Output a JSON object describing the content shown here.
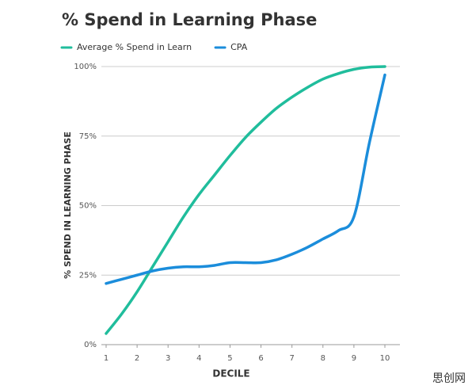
{
  "chart_data": {
    "type": "line",
    "title": "% Spend in Learning Phase",
    "x_label": "DECILE",
    "y_label": "% SPEND IN LEARNING PHASE",
    "x": [
      1,
      1.5,
      2,
      2.5,
      3,
      3.5,
      4,
      4.5,
      5,
      5.5,
      6,
      6.5,
      7,
      7.5,
      8,
      8.5,
      9,
      9.5,
      10
    ],
    "series": [
      {
        "name": "Average % Spend in Learn",
        "color": "#20bd9c",
        "values": [
          4,
          11,
          19,
          28,
          37,
          46,
          54,
          61,
          68,
          74.5,
          80,
          85,
          89,
          92.5,
          95.5,
          97.5,
          99,
          99.8,
          100
        ]
      },
      {
        "name": "CPA",
        "color": "#1b8ddb",
        "values": [
          22,
          23.5,
          25,
          26.5,
          27.5,
          28,
          28,
          28.5,
          29.5,
          29.5,
          29.5,
          30.5,
          32.5,
          35,
          38,
          41,
          46,
          72.6,
          97
        ]
      }
    ],
    "xlim": [
      1,
      10
    ],
    "ylim": [
      0,
      100
    ],
    "xticks": [
      1,
      2,
      3,
      4,
      5,
      6,
      7,
      8,
      9,
      10
    ],
    "yticks": [
      {
        "value": 0,
        "label": "0%"
      },
      {
        "value": 25,
        "label": "25%"
      },
      {
        "value": 50,
        "label": "50%"
      },
      {
        "value": 75,
        "label": "75%"
      },
      {
        "value": 100,
        "label": "100%"
      }
    ],
    "grid": true,
    "watermark": "思创网"
  }
}
